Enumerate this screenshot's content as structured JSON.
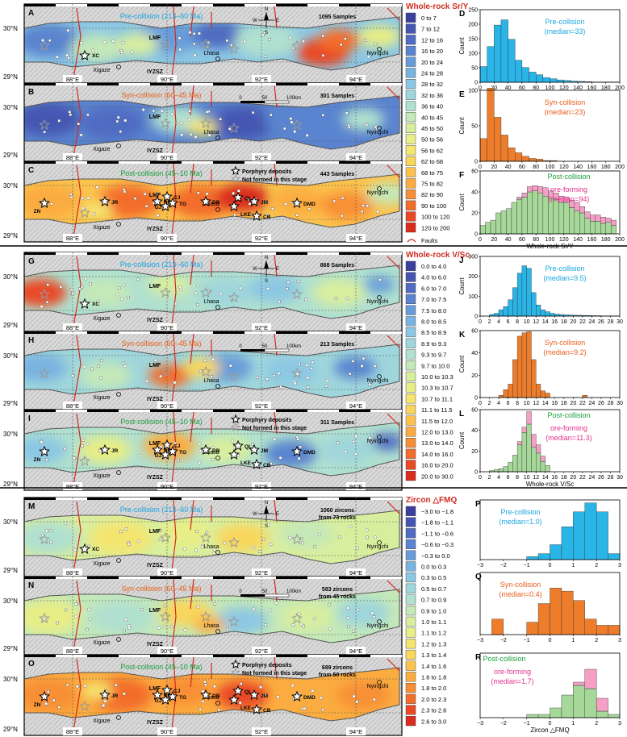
{
  "maps": {
    "lat_labels": [
      "30°N",
      "29°N"
    ],
    "lon_labels": [
      "88°E",
      "90°E",
      "92°E",
      "94°E"
    ],
    "place_labels": {
      "lmf": "LMF",
      "iyzsz": "IYZSZ",
      "lhasa": "Lhasa",
      "xigaze": "Xigaze",
      "nyingchi": "Nyingchi"
    },
    "deposit_labels": [
      "XC",
      "ZN",
      "JR",
      "BR",
      "CJ",
      "GJ",
      "TG",
      "DB",
      "LKE",
      "QL",
      "JM",
      "CB",
      "DMD"
    ],
    "legend_deposits": "Porphyry deposits",
    "legend_not_formed": "Not formed in this stage",
    "scale_labels": [
      "0",
      "50",
      "100km"
    ],
    "compass": {
      "n": "N",
      "s": "S",
      "w": "W",
      "e": "E"
    },
    "groups": [
      {
        "title": "Whole-rock Sr/Y",
        "panels": [
          {
            "letter": "A",
            "title": "Pre-collision (213–60 Ma)",
            "samples": "1095 Samples",
            "samples2": ""
          },
          {
            "letter": "B",
            "title": "Syn-collision (60–45 Ma)",
            "samples": "301 Samples",
            "samples2": ""
          },
          {
            "letter": "C",
            "title": "Post-collision (45–10 Ma)",
            "samples": "443 Samples",
            "samples2": ""
          }
        ],
        "legend": [
          "0 to 7",
          "7 to 12",
          "12 to 16",
          "16 to 20",
          "20 to 24",
          "24 to 28",
          "28 to 32",
          "32 to 36",
          "36 to 40",
          "40 to 45",
          "45 to 50",
          "50 to 56",
          "56 to 62",
          "62 to 68",
          "68 to 75",
          "75 to 82",
          "82 to 90",
          "90 to 100",
          "100 to 120",
          "120 to 200"
        ],
        "faults": "Faults"
      },
      {
        "title": "Whole-rock V/Sc",
        "panels": [
          {
            "letter": "G",
            "title": "Pre-collision (213–60 Ma)",
            "samples": "868 Samples",
            "samples2": ""
          },
          {
            "letter": "H",
            "title": "Syn-collision (60–45 Ma)",
            "samples": "213 Samples",
            "samples2": ""
          },
          {
            "letter": "I",
            "title": "Post-collision (45–10 Ma)",
            "samples": "311 Samples",
            "samples2": ""
          }
        ],
        "legend": [
          "0.0 to 4.0",
          "4.0 to 6.0",
          "6.0 to 7.0",
          "7.0 to 7.5",
          "7.5 to 8.0",
          "8.0 to 8.5",
          "8.5 to 8.9",
          "8.9 to 9.3",
          "9.3 to 9.7",
          "9.7 to 10.0",
          "10.0 to 10.3",
          "10.3 to 10.7",
          "10.7 to 11.1",
          "11.1 to 11.5",
          "11.5 to 12.0",
          "12.0 to 13.0",
          "13.0 to 14.0",
          "14.0 to 16.0",
          "16.0 to 20.0",
          "20.0 to 30.0"
        ],
        "faults": ""
      },
      {
        "title": "Zircon △FMQ",
        "panels": [
          {
            "letter": "M",
            "title": "Pre-collision (213–60 Ma)",
            "samples": "1060 zircons",
            "samples2": "from 73 rocks"
          },
          {
            "letter": "N",
            "title": "Syn-collision (60–45 Ma)",
            "samples": "583 zircons",
            "samples2": "from 45 rocks"
          },
          {
            "letter": "O",
            "title": "Post-collision (45–10 Ma)",
            "samples": "689 zircons",
            "samples2": "from 50 rocks"
          }
        ],
        "legend": [
          "−3.0 to −1.8",
          "−1.8 to −1.1",
          "−1.1 to −0.6",
          "−0.6 to −0.3",
          "−0.3 to 0.0",
          "0.0 to 0.3",
          "0.3 to 0.5",
          "0.5 to 0.7",
          "0.7 to 0.9",
          "0.9 to 1.0",
          "1.0 to 1.1",
          "1.1 to 1.2",
          "1.2 to 1.3",
          "1.3 to 1.4",
          "1.4 to 1.6",
          "1.6 to 1.8",
          "1.8 to 2.0",
          "2.0 to 2.3",
          "2.3 to 2.6",
          "2.6 to 3.0"
        ],
        "faults": ""
      }
    ],
    "legend_colors": [
      "#3b3f9e",
      "#4556b2",
      "#4f6cc2",
      "#5a84cf",
      "#679cd9",
      "#79b3e0",
      "#8cc7e3",
      "#9fd6dc",
      "#b0e0cf",
      "#c4e8b8",
      "#d8ee9f",
      "#e8ee86",
      "#f4e56f",
      "#f9d65c",
      "#fbc34d",
      "#fbac40",
      "#f88f34",
      "#f36d2b",
      "#e94a25",
      "#d92b1e"
    ]
  },
  "chart_data": [
    {
      "type": "bar",
      "panel": "D",
      "title": "Pre-collision",
      "annotation": "(median=33)",
      "xlabel": "",
      "ylabel": "Count",
      "xlim": [
        0,
        200
      ],
      "ylim": [
        0,
        250
      ],
      "xticks": [
        0,
        20,
        40,
        60,
        80,
        100,
        120,
        140,
        160,
        180,
        200
      ],
      "yticks": [
        0,
        50,
        100,
        150,
        200,
        250
      ],
      "bin_width": 10,
      "bin_start": 0,
      "series": [
        {
          "values": [
            54,
            123,
            197,
            215,
            148,
            76,
            51,
            35,
            26,
            16,
            12,
            8,
            6,
            4,
            3,
            2,
            1,
            1,
            1,
            1
          ],
          "color": "#29b5e8"
        }
      ]
    },
    {
      "type": "bar",
      "panel": "E",
      "title": "Syn-collision",
      "annotation": "(median=23)",
      "xlabel": "",
      "ylabel": "Count",
      "xlim": [
        0,
        200
      ],
      "ylim": [
        0,
        100
      ],
      "xticks": [
        0,
        20,
        40,
        60,
        80,
        100,
        120,
        140,
        160,
        180,
        200
      ],
      "yticks": [
        0,
        50,
        100
      ],
      "bin_width": 10,
      "bin_start": 0,
      "series": [
        {
          "values": [
            32,
            103,
            62,
            37,
            19,
            12,
            7,
            4,
            3,
            1,
            1,
            0,
            0,
            0,
            0,
            0,
            0,
            0,
            0,
            0
          ],
          "color": "#ee7d2b"
        }
      ]
    },
    {
      "type": "bar",
      "panel": "F",
      "title": "Post-collision",
      "annotation": "ore-forming",
      "annotation2": "(median=94)",
      "xlabel": "Whole-rock Sr/Y",
      "ylabel": "Count",
      "xlim": [
        0,
        200
      ],
      "ylim": [
        0,
        60
      ],
      "xticks": [
        0,
        20,
        40,
        60,
        80,
        100,
        120,
        140,
        160,
        180,
        200
      ],
      "yticks": [
        0,
        20,
        40,
        60
      ],
      "bin_width": 7.5,
      "bin_start": 0,
      "stacked": true,
      "series": [
        {
          "values": [
            8,
            11,
            13,
            20,
            22,
            24,
            30,
            33,
            35,
            40,
            41,
            39,
            36,
            34,
            33,
            30,
            30,
            25,
            22,
            20,
            15,
            12,
            12,
            10,
            11,
            8
          ],
          "color": "#a6d89a"
        },
        {
          "values": [
            0,
            0,
            0,
            0,
            0,
            0,
            0,
            2,
            4,
            5,
            5,
            6,
            8,
            7,
            6,
            6,
            5,
            7,
            8,
            6,
            6,
            6,
            6,
            6,
            4,
            5
          ],
          "color": "#f59fc6"
        }
      ]
    },
    {
      "type": "bar",
      "panel": "J",
      "title": "Pre-collision",
      "annotation": "(median=9.5)",
      "xlabel": "",
      "ylabel": "Count",
      "xlim": [
        0,
        30
      ],
      "ylim": [
        0,
        300
      ],
      "xticks": [
        0,
        2,
        4,
        6,
        8,
        10,
        12,
        14,
        16,
        18,
        20,
        22,
        24,
        26,
        28,
        30
      ],
      "yticks": [
        0,
        100,
        200,
        300
      ],
      "bin_width": 1,
      "bin_start": 0,
      "series": [
        {
          "values": [
            0,
            0,
            8,
            14,
            32,
            48,
            82,
            143,
            216,
            253,
            240,
            118,
            56,
            32,
            22,
            14,
            10,
            8,
            6,
            5,
            4,
            4,
            3,
            3,
            2,
            2,
            1,
            1,
            1,
            1
          ],
          "color": "#29b5e8"
        }
      ]
    },
    {
      "type": "bar",
      "panel": "K",
      "title": "Syn-collision",
      "annotation": "(median=9.2)",
      "xlabel": "",
      "ylabel": "Count",
      "xlim": [
        0,
        30
      ],
      "ylim": [
        0,
        60
      ],
      "xticks": [
        0,
        2,
        4,
        6,
        8,
        10,
        12,
        14,
        16,
        18,
        20,
        22,
        24,
        26,
        28,
        30
      ],
      "yticks": [
        0,
        20,
        40,
        60
      ],
      "bin_width": 1,
      "bin_start": 0,
      "series": [
        {
          "values": [
            0,
            0,
            0,
            0,
            2,
            7,
            12,
            34,
            55,
            58,
            59,
            34,
            12,
            6,
            4,
            0,
            0,
            0,
            0,
            0,
            0,
            0,
            2,
            0,
            0,
            0,
            0,
            0,
            0,
            0
          ],
          "color": "#ee7d2b"
        }
      ]
    },
    {
      "type": "bar",
      "panel": "L",
      "title": "Post-collision",
      "annotation": "ore-forming",
      "annotation2": "(median=11.3)",
      "xlabel": "Whole-rock V/Sc",
      "ylabel": "Count",
      "xlim": [
        0,
        30
      ],
      "ylim": [
        0,
        60
      ],
      "xticks": [
        0,
        2,
        4,
        6,
        8,
        10,
        12,
        14,
        16,
        18,
        20,
        22,
        24,
        26,
        28,
        30
      ],
      "yticks": [
        0,
        20,
        40,
        60
      ],
      "bin_width": 1,
      "bin_start": 0,
      "stacked": true,
      "series": [
        {
          "values": [
            0,
            0,
            1,
            2,
            3,
            5,
            9,
            16,
            26,
            38,
            46,
            24,
            18,
            10,
            6,
            0,
            0,
            0,
            0,
            0,
            0,
            0,
            0,
            0,
            0,
            0,
            0,
            0,
            0,
            0
          ],
          "color": "#a6d89a"
        },
        {
          "values": [
            0,
            0,
            0,
            0,
            0,
            0,
            0,
            0,
            3,
            5,
            12,
            12,
            8,
            5,
            0,
            0,
            0,
            0,
            0,
            0,
            0,
            0,
            0,
            0,
            0,
            0,
            0,
            0,
            0,
            0
          ],
          "color": "#f59fc6"
        }
      ]
    },
    {
      "type": "bar",
      "panel": "P",
      "title": "Pre-collision",
      "annotation": "(median=1.0)",
      "xlabel": "",
      "ylabel": "",
      "xlim": [
        -3,
        3
      ],
      "ylim": [
        0,
        20
      ],
      "xticks": [
        -3,
        -2,
        -1,
        0,
        1,
        2,
        3
      ],
      "yticks": [],
      "bin_width": 0.5,
      "bin_start": -3,
      "series": [
        {
          "values": [
            0,
            0,
            0,
            0,
            1,
            2,
            5,
            11,
            16,
            19,
            16,
            2
          ],
          "color": "#29b5e8"
        }
      ]
    },
    {
      "type": "bar",
      "panel": "Q",
      "title": "Syn-collision",
      "annotation": "(median=0.4)",
      "xlabel": "",
      "ylabel": "",
      "xlim": [
        -3,
        3
      ],
      "ylim": [
        0,
        20
      ],
      "xticks": [
        -3,
        -2,
        -1,
        0,
        1,
        2,
        3
      ],
      "yticks": [],
      "bin_width": 0.5,
      "bin_start": -3,
      "series": [
        {
          "values": [
            0,
            5,
            0,
            0,
            4,
            10,
            15,
            14,
            11,
            5,
            3,
            3
          ],
          "color": "#ee7d2b"
        }
      ]
    },
    {
      "type": "bar",
      "panel": "R",
      "title": "Post-collision",
      "annotation": "ore-forming",
      "annotation2": "(median=1.7)",
      "xlabel": "Zircon △FMQ",
      "ylabel": "",
      "xlim": [
        -3,
        3
      ],
      "ylim": [
        0,
        20
      ],
      "xticks": [
        -3,
        -2,
        -1,
        0,
        1,
        2,
        3
      ],
      "yticks": [],
      "bin_width": 0.5,
      "bin_start": -3,
      "stacked": true,
      "series": [
        {
          "values": [
            0,
            0,
            0,
            0,
            1,
            1,
            3,
            7,
            10,
            9,
            2,
            1
          ],
          "color": "#a6d89a"
        },
        {
          "values": [
            0,
            0,
            0,
            0,
            0,
            0,
            0,
            0,
            1,
            6,
            4,
            0
          ],
          "color": "#f59fc6"
        }
      ]
    }
  ]
}
